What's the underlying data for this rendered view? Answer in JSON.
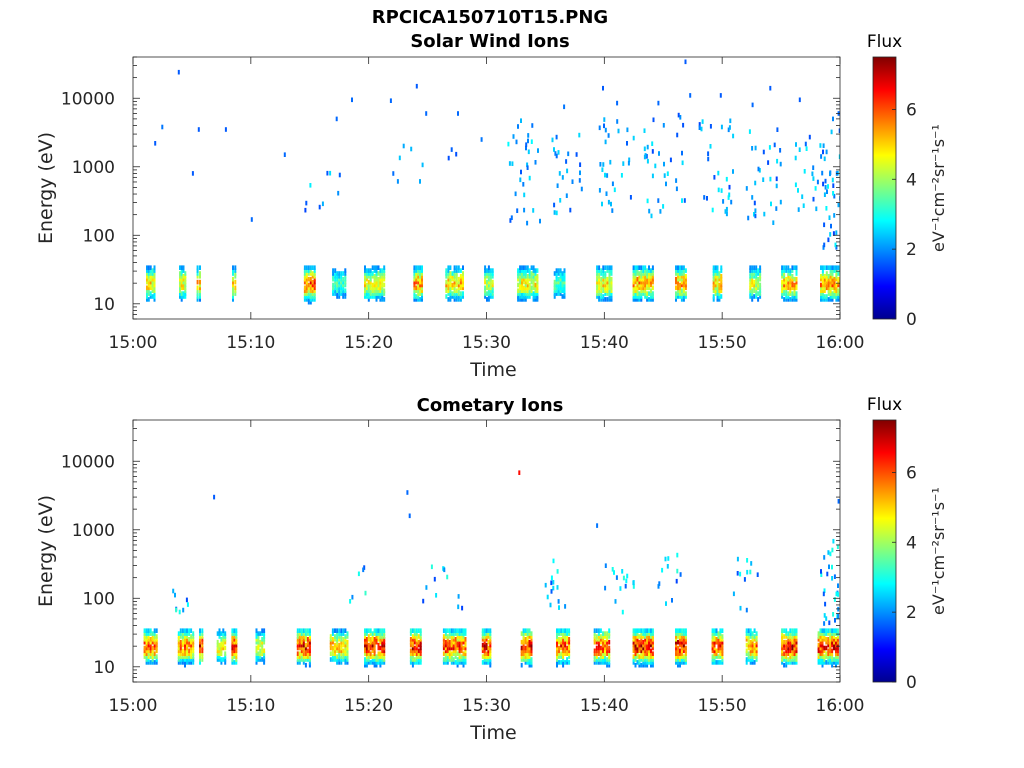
{
  "figure": {
    "title": "RPCICA150710T15.PNG"
  },
  "colormap": [
    "#00008f",
    "#0000ff",
    "#0080ff",
    "#00ffff",
    "#80ff80",
    "#ffff00",
    "#ff8000",
    "#ff0000",
    "#800000"
  ],
  "chart_data": [
    {
      "type": "heatmap",
      "title": "Solar Wind Ions",
      "xlabel": "Time",
      "ylabel": "Energy (eV)",
      "x_ticks": [
        "15:00",
        "15:10",
        "15:20",
        "15:30",
        "15:40",
        "15:50",
        "16:00"
      ],
      "x_range": [
        "15:00",
        "16:00"
      ],
      "y_scale": "log",
      "y_ticks": [
        10,
        100,
        1000,
        10000
      ],
      "y_tick_labels": [
        "10",
        "100",
        "1000",
        "10000"
      ],
      "ylim": [
        6,
        40000
      ],
      "colorbar": {
        "title": "Flux",
        "unit": "eV⁻¹cm⁻²sr⁻¹s⁻¹",
        "range": [
          0,
          7.5
        ],
        "ticks": [
          "0",
          "2",
          "4",
          "6"
        ]
      },
      "low_energy_bursts": [
        {
          "t": 1.5,
          "w": 0.8,
          "v": 5.2
        },
        {
          "t": 4.2,
          "w": 0.6,
          "v": 5.0
        },
        {
          "t": 5.6,
          "w": 0.4,
          "v": 5.5
        },
        {
          "t": 8.6,
          "w": 0.4,
          "v": 5.2
        },
        {
          "t": 15.0,
          "w": 1.0,
          "v": 6.3
        },
        {
          "t": 17.5,
          "w": 1.2,
          "v": 3.6
        },
        {
          "t": 20.5,
          "w": 1.8,
          "v": 5.0
        },
        {
          "t": 24.2,
          "w": 0.8,
          "v": 5.8
        },
        {
          "t": 27.3,
          "w": 1.6,
          "v": 5.3
        },
        {
          "t": 30.2,
          "w": 0.8,
          "v": 4.6
        },
        {
          "t": 33.5,
          "w": 1.8,
          "v": 5.0
        },
        {
          "t": 36.2,
          "w": 1.0,
          "v": 3.8
        },
        {
          "t": 40.0,
          "w": 1.4,
          "v": 5.2
        },
        {
          "t": 43.3,
          "w": 1.8,
          "v": 5.8
        },
        {
          "t": 46.5,
          "w": 1.0,
          "v": 5.6
        },
        {
          "t": 49.6,
          "w": 0.8,
          "v": 5.5
        },
        {
          "t": 52.8,
          "w": 1.0,
          "v": 4.8
        },
        {
          "t": 55.7,
          "w": 1.4,
          "v": 5.5
        },
        {
          "t": 59.2,
          "w": 1.8,
          "v": 5.8
        }
      ],
      "high_energy_points": [
        {
          "t": 3.8,
          "e": 24000,
          "v": 1.6
        },
        {
          "t": 1.8,
          "e": 2200,
          "v": 1.6
        },
        {
          "t": 2.4,
          "e": 3800,
          "v": 1.8
        },
        {
          "t": 5.5,
          "e": 3500,
          "v": 1.6
        },
        {
          "t": 7.8,
          "e": 3500,
          "v": 1.6
        },
        {
          "t": 5.0,
          "e": 800,
          "v": 1.6
        },
        {
          "t": 10.0,
          "e": 170,
          "v": 1.7
        },
        {
          "t": 12.8,
          "e": 1500,
          "v": 1.7
        },
        {
          "t": 17.2,
          "e": 5000,
          "v": 1.7
        },
        {
          "t": 18.5,
          "e": 9500,
          "v": 1.7
        },
        {
          "t": 21.8,
          "e": 9200,
          "v": 1.7
        },
        {
          "t": 24.0,
          "e": 15000,
          "v": 1.6
        },
        {
          "t": 24.8,
          "e": 6000,
          "v": 1.7
        },
        {
          "t": 27.5,
          "e": 6000,
          "v": 1.7
        },
        {
          "t": 29.5,
          "e": 2500,
          "v": 1.8
        },
        {
          "t": 33.8,
          "e": 4000,
          "v": 1.8
        },
        {
          "t": 36.5,
          "e": 7500,
          "v": 1.8
        },
        {
          "t": 39.8,
          "e": 14000,
          "v": 1.6
        },
        {
          "t": 41.0,
          "e": 8500,
          "v": 1.7
        },
        {
          "t": 44.5,
          "e": 8500,
          "v": 1.7
        },
        {
          "t": 46.8,
          "e": 34000,
          "v": 1.6
        },
        {
          "t": 47.2,
          "e": 11000,
          "v": 1.7
        },
        {
          "t": 49.8,
          "e": 11000,
          "v": 1.6
        },
        {
          "t": 52.5,
          "e": 8000,
          "v": 1.7
        },
        {
          "t": 54.0,
          "e": 14000,
          "v": 1.6
        },
        {
          "t": 56.5,
          "e": 9500,
          "v": 1.6
        },
        {
          "t": 59.8,
          "e": 6000,
          "v": 1.7
        }
      ],
      "clusters": [
        {
          "t": 16.0,
          "w": 3.0,
          "emin": 180,
          "emax": 900,
          "n": 9
        },
        {
          "t": 25.0,
          "w": 6.0,
          "emin": 600,
          "emax": 4000,
          "n": 10
        },
        {
          "t": 33.0,
          "w": 3.0,
          "emin": 150,
          "emax": 5000,
          "n": 30
        },
        {
          "t": 37.0,
          "w": 3.0,
          "emin": 200,
          "emax": 3000,
          "n": 25
        },
        {
          "t": 41.0,
          "w": 3.0,
          "emin": 200,
          "emax": 5000,
          "n": 30
        },
        {
          "t": 45.0,
          "w": 3.5,
          "emin": 150,
          "emax": 6000,
          "n": 35
        },
        {
          "t": 49.5,
          "w": 3.0,
          "emin": 200,
          "emax": 5000,
          "n": 30
        },
        {
          "t": 53.5,
          "w": 3.0,
          "emin": 150,
          "emax": 4000,
          "n": 30
        },
        {
          "t": 57.5,
          "w": 3.0,
          "emin": 200,
          "emax": 3000,
          "n": 25
        },
        {
          "t": 59.3,
          "w": 1.8,
          "emin": 60,
          "emax": 6000,
          "n": 40
        }
      ]
    },
    {
      "type": "heatmap",
      "title": "Cometary Ions",
      "xlabel": "Time",
      "ylabel": "Energy (eV)",
      "x_ticks": [
        "15:00",
        "15:10",
        "15:20",
        "15:30",
        "15:40",
        "15:50",
        "16:00"
      ],
      "x_range": [
        "15:00",
        "16:00"
      ],
      "y_scale": "log",
      "y_ticks": [
        10,
        100,
        1000,
        10000
      ],
      "y_tick_labels": [
        "10",
        "100",
        "1000",
        "10000"
      ],
      "ylim": [
        6,
        40000
      ],
      "colorbar": {
        "title": "Flux",
        "unit": "eV⁻¹cm⁻²sr⁻¹s⁻¹",
        "range": [
          0,
          7.5
        ],
        "ticks": [
          "0",
          "2",
          "4",
          "6"
        ]
      },
      "low_energy_bursts": [
        {
          "t": 1.5,
          "w": 1.2,
          "v": 6.3
        },
        {
          "t": 4.5,
          "w": 1.4,
          "v": 6.0
        },
        {
          "t": 5.8,
          "w": 0.4,
          "v": 6.8
        },
        {
          "t": 7.5,
          "w": 0.8,
          "v": 5.0
        },
        {
          "t": 8.6,
          "w": 0.5,
          "v": 6.8
        },
        {
          "t": 10.8,
          "w": 0.8,
          "v": 4.8
        },
        {
          "t": 14.5,
          "w": 1.2,
          "v": 6.8
        },
        {
          "t": 17.5,
          "w": 1.6,
          "v": 5.5
        },
        {
          "t": 20.5,
          "w": 1.8,
          "v": 6.8
        },
        {
          "t": 24.0,
          "w": 1.0,
          "v": 7.0
        },
        {
          "t": 27.3,
          "w": 2.0,
          "v": 6.5
        },
        {
          "t": 30.0,
          "w": 0.8,
          "v": 6.8
        },
        {
          "t": 33.4,
          "w": 1.0,
          "v": 7.0
        },
        {
          "t": 36.5,
          "w": 1.2,
          "v": 6.5
        },
        {
          "t": 39.8,
          "w": 1.4,
          "v": 6.5
        },
        {
          "t": 43.3,
          "w": 1.8,
          "v": 7.0
        },
        {
          "t": 46.5,
          "w": 1.0,
          "v": 7.0
        },
        {
          "t": 49.6,
          "w": 1.0,
          "v": 6.5
        },
        {
          "t": 52.5,
          "w": 1.0,
          "v": 6.0
        },
        {
          "t": 55.7,
          "w": 1.4,
          "v": 7.0
        },
        {
          "t": 59.0,
          "w": 1.8,
          "v": 6.8
        }
      ],
      "high_energy_points": [
        {
          "t": 6.8,
          "e": 3000,
          "v": 1.6
        },
        {
          "t": 23.2,
          "e": 3500,
          "v": 1.7
        },
        {
          "t": 23.4,
          "e": 1600,
          "v": 1.7
        },
        {
          "t": 32.7,
          "e": 6800,
          "v": 6.5
        },
        {
          "t": 39.3,
          "e": 1150,
          "v": 1.8
        },
        {
          "t": 59.8,
          "e": 2600,
          "v": 1.7
        }
      ],
      "clusters": [
        {
          "t": 4.0,
          "w": 1.5,
          "emin": 60,
          "emax": 130,
          "n": 8
        },
        {
          "t": 19.0,
          "w": 2.0,
          "emin": 60,
          "emax": 350,
          "n": 6
        },
        {
          "t": 26.0,
          "w": 4.0,
          "emin": 70,
          "emax": 300,
          "n": 12
        },
        {
          "t": 35.8,
          "w": 2.0,
          "emin": 60,
          "emax": 400,
          "n": 14
        },
        {
          "t": 41.0,
          "w": 3.0,
          "emin": 60,
          "emax": 300,
          "n": 16
        },
        {
          "t": 45.5,
          "w": 2.0,
          "emin": 80,
          "emax": 450,
          "n": 12
        },
        {
          "t": 51.5,
          "w": 3.0,
          "emin": 60,
          "emax": 400,
          "n": 12
        },
        {
          "t": 59.0,
          "w": 1.6,
          "emin": 40,
          "emax": 700,
          "n": 30
        }
      ]
    }
  ]
}
